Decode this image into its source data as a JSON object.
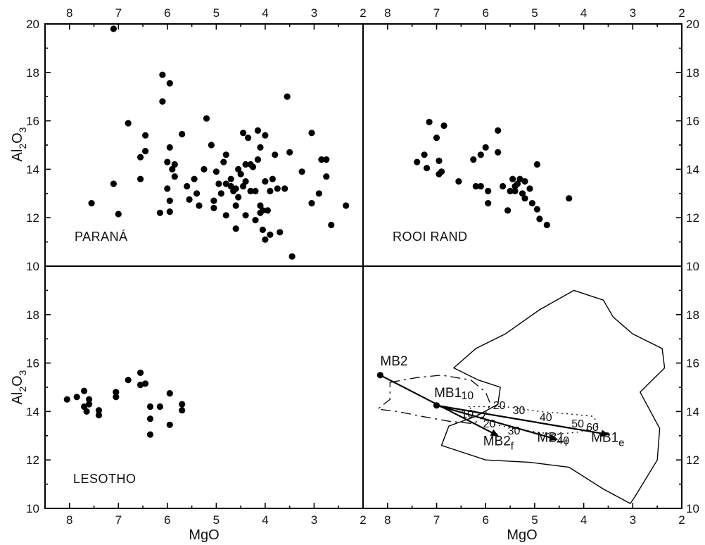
{
  "figure": {
    "xlabel": "MgO",
    "ylabel_main": "Al",
    "ylabel_sub1": "2",
    "ylabel_mid": "O",
    "ylabel_sub2": "3"
  },
  "chart_data": [
    {
      "type": "scatter",
      "panel": "top-left",
      "label": "PARANÁ",
      "xlabel": "",
      "ylabel": "Al2O3",
      "xlim": [
        8.5,
        2
      ],
      "ylim": [
        10,
        20
      ],
      "points": [
        [
          7.1,
          19.8
        ],
        [
          6.1,
          17.9
        ],
        [
          5.95,
          17.55
        ],
        [
          6.1,
          16.8
        ],
        [
          6.8,
          15.9
        ],
        [
          5.2,
          16.1
        ],
        [
          3.55,
          17.0
        ],
        [
          7.55,
          12.6
        ],
        [
          7.1,
          13.4
        ],
        [
          7.0,
          12.15
        ],
        [
          6.55,
          14.5
        ],
        [
          6.45,
          15.4
        ],
        [
          6.45,
          14.75
        ],
        [
          6.55,
          13.6
        ],
        [
          6.15,
          12.2
        ],
        [
          6.0,
          14.3
        ],
        [
          5.95,
          14.9
        ],
        [
          5.9,
          14.0
        ],
        [
          5.85,
          14.2
        ],
        [
          5.85,
          13.7
        ],
        [
          6.0,
          13.2
        ],
        [
          5.95,
          12.7
        ],
        [
          5.95,
          12.25
        ],
        [
          5.7,
          15.45
        ],
        [
          5.6,
          13.3
        ],
        [
          5.55,
          12.75
        ],
        [
          5.45,
          13.6
        ],
        [
          5.4,
          13.0
        ],
        [
          5.35,
          12.5
        ],
        [
          5.25,
          14.0
        ],
        [
          5.1,
          15.0
        ],
        [
          5.05,
          12.7
        ],
        [
          5.0,
          13.9
        ],
        [
          5.05,
          12.4
        ],
        [
          4.95,
          13.4
        ],
        [
          4.9,
          13.0
        ],
        [
          4.85,
          14.3
        ],
        [
          4.8,
          14.6
        ],
        [
          4.8,
          12.1
        ],
        [
          4.7,
          13.3
        ],
        [
          4.7,
          13.6
        ],
        [
          4.65,
          13.1
        ],
        [
          4.6,
          13.2
        ],
        [
          4.6,
          12.5
        ],
        [
          4.6,
          11.55
        ],
        [
          4.55,
          14.0
        ],
        [
          4.55,
          12.85
        ],
        [
          4.5,
          13.8
        ],
        [
          4.45,
          15.5
        ],
        [
          4.45,
          13.3
        ],
        [
          4.4,
          14.2
        ],
        [
          4.4,
          13.5
        ],
        [
          4.4,
          12.1
        ],
        [
          4.35,
          15.3
        ],
        [
          4.3,
          14.2
        ],
        [
          4.25,
          14.1
        ],
        [
          4.2,
          13.1
        ],
        [
          4.2,
          11.9
        ],
        [
          4.15,
          15.6
        ],
        [
          4.1,
          14.9
        ],
        [
          4.1,
          12.5
        ],
        [
          4.05,
          12.3
        ],
        [
          4.05,
          11.5
        ],
        [
          4.0,
          15.4
        ],
        [
          4.0,
          13.5
        ],
        [
          4.0,
          11.1
        ],
        [
          3.95,
          12.3
        ],
        [
          3.9,
          13.1
        ],
        [
          3.9,
          11.3
        ],
        [
          3.85,
          13.6
        ],
        [
          3.8,
          14.6
        ],
        [
          3.75,
          13.2
        ],
        [
          3.7,
          11.4
        ],
        [
          3.6,
          13.2
        ],
        [
          3.5,
          14.7
        ],
        [
          3.45,
          10.4
        ],
        [
          3.25,
          13.9
        ],
        [
          3.05,
          15.5
        ],
        [
          3.05,
          12.6
        ],
        [
          2.9,
          13.0
        ],
        [
          2.85,
          14.4
        ],
        [
          2.75,
          14.4
        ],
        [
          2.75,
          13.7
        ],
        [
          2.65,
          11.7
        ],
        [
          2.35,
          12.5
        ],
        [
          4.15,
          14.4
        ],
        [
          4.8,
          13.4
        ],
        [
          4.3,
          13.1
        ],
        [
          4.1,
          12.2
        ]
      ]
    },
    {
      "type": "scatter",
      "panel": "top-right",
      "label": "ROOI RAND",
      "xlabel": "",
      "ylabel": "",
      "xlim": [
        8.5,
        2
      ],
      "ylim": [
        10,
        20
      ],
      "points": [
        [
          7.15,
          15.95
        ],
        [
          6.85,
          15.8
        ],
        [
          7.0,
          15.3
        ],
        [
          6.95,
          14.35
        ],
        [
          7.4,
          14.3
        ],
        [
          7.25,
          14.6
        ],
        [
          7.2,
          14.05
        ],
        [
          6.95,
          13.8
        ],
        [
          6.9,
          13.9
        ],
        [
          6.55,
          13.5
        ],
        [
          6.2,
          13.3
        ],
        [
          6.1,
          13.3
        ],
        [
          5.95,
          13.1
        ],
        [
          5.95,
          12.6
        ],
        [
          6.25,
          14.4
        ],
        [
          6.1,
          14.6
        ],
        [
          6.0,
          14.9
        ],
        [
          5.75,
          14.7
        ],
        [
          5.75,
          15.6
        ],
        [
          5.55,
          12.3
        ],
        [
          5.65,
          13.3
        ],
        [
          5.5,
          13.1
        ],
        [
          5.45,
          13.6
        ],
        [
          5.4,
          13.1
        ],
        [
          5.35,
          13.4
        ],
        [
          5.3,
          13.6
        ],
        [
          5.25,
          13.0
        ],
        [
          5.2,
          12.8
        ],
        [
          5.1,
          13.2
        ],
        [
          5.05,
          12.6
        ],
        [
          4.95,
          14.2
        ],
        [
          4.95,
          12.35
        ],
        [
          4.9,
          11.95
        ],
        [
          4.75,
          11.7
        ],
        [
          4.3,
          12.8
        ],
        [
          5.4,
          13.3
        ],
        [
          5.2,
          13.5
        ]
      ]
    },
    {
      "type": "scatter",
      "panel": "bottom-left",
      "label": "LESOTHO",
      "xlabel": "MgO",
      "ylabel": "Al2O3",
      "xlim": [
        8.5,
        2
      ],
      "ylim": [
        10,
        20
      ],
      "points": [
        [
          8.05,
          14.5
        ],
        [
          7.85,
          14.6
        ],
        [
          7.7,
          14.85
        ],
        [
          7.7,
          14.2
        ],
        [
          7.65,
          14.0
        ],
        [
          7.6,
          14.5
        ],
        [
          7.6,
          14.3
        ],
        [
          7.4,
          14.05
        ],
        [
          7.4,
          13.85
        ],
        [
          7.05,
          14.8
        ],
        [
          7.05,
          14.6
        ],
        [
          6.8,
          15.3
        ],
        [
          6.55,
          15.6
        ],
        [
          6.55,
          15.1
        ],
        [
          6.45,
          15.15
        ],
        [
          6.35,
          14.2
        ],
        [
          6.35,
          13.7
        ],
        [
          6.35,
          13.05
        ],
        [
          6.15,
          14.2
        ],
        [
          5.95,
          14.75
        ],
        [
          5.95,
          13.45
        ],
        [
          5.7,
          14.3
        ],
        [
          5.7,
          14.05
        ]
      ]
    },
    {
      "type": "scatter",
      "panel": "bottom-right",
      "label": "",
      "xlabel": "MgO",
      "ylabel": "",
      "xlim": [
        8.5,
        2
      ],
      "ylim": [
        10,
        20
      ],
      "points": [
        [
          8.15,
          15.5
        ],
        [
          7.0,
          14.25
        ]
      ],
      "vectors": [
        {
          "name": "MB2",
          "from": [
            8.15,
            15.5
          ],
          "to": [
            5.75,
            13.0
          ]
        },
        {
          "name": "MB1",
          "from": [
            7.0,
            14.25
          ],
          "to": [
            4.55,
            12.85
          ]
        },
        {
          "name": "MB1",
          "from": [
            7.0,
            14.25
          ],
          "to": [
            3.5,
            13.05
          ]
        }
      ],
      "annotations": [
        {
          "text": "MB2",
          "x": 8.15,
          "y": 15.9
        },
        {
          "text": "MB1",
          "x": 7.05,
          "y": 14.6
        },
        {
          "text": "10",
          "x": 6.5,
          "y": 14.5
        },
        {
          "text": "20",
          "x": 5.85,
          "y": 14.1
        },
        {
          "text": "30",
          "x": 5.45,
          "y": 13.9
        },
        {
          "text": "40",
          "x": 4.9,
          "y": 13.6
        },
        {
          "text": "50",
          "x": 4.25,
          "y": 13.35
        },
        {
          "text": "60",
          "x": 3.95,
          "y": 13.2
        },
        {
          "text": "10",
          "x": 6.5,
          "y": 13.75
        },
        {
          "text": "20",
          "x": 6.05,
          "y": 13.35
        },
        {
          "text": "30",
          "x": 5.55,
          "y": 13.05
        },
        {
          "text": "40",
          "x": 4.55,
          "y": 12.65
        },
        {
          "text": "MB2",
          "x": 6.05,
          "y": 12.6,
          "sub": "f"
        },
        {
          "text": "MB1",
          "x": 4.95,
          "y": 12.75,
          "sub": "f"
        },
        {
          "text": "MB1",
          "x": 3.85,
          "y": 12.75,
          "sub": "e"
        }
      ],
      "fields": {
        "solid_outline": [
          [
            6.65,
            15.8
          ],
          [
            6.2,
            16.6
          ],
          [
            5.6,
            17.2
          ],
          [
            4.9,
            18.2
          ],
          [
            4.2,
            19.0
          ],
          [
            3.6,
            18.6
          ],
          [
            3.4,
            17.9
          ],
          [
            3.0,
            17.2
          ],
          [
            2.4,
            16.6
          ],
          [
            2.35,
            15.8
          ],
          [
            2.85,
            14.8
          ],
          [
            2.45,
            13.3
          ],
          [
            2.5,
            12.0
          ],
          [
            2.95,
            10.5
          ],
          [
            3.05,
            10.2
          ],
          [
            3.6,
            10.8
          ],
          [
            4.3,
            11.7
          ],
          [
            5.1,
            11.9
          ],
          [
            6.0,
            12.0
          ],
          [
            6.9,
            12.6
          ],
          [
            6.75,
            13.4
          ],
          [
            6.2,
            13.8
          ],
          [
            5.75,
            14.3
          ],
          [
            5.7,
            15.0
          ],
          [
            6.15,
            15.3
          ],
          [
            6.65,
            15.8
          ]
        ],
        "dashed_outline": [
          [
            7.95,
            15.2
          ],
          [
            7.4,
            15.4
          ],
          [
            6.9,
            15.5
          ],
          [
            6.3,
            15.3
          ],
          [
            6.0,
            14.8
          ],
          [
            5.9,
            14.3
          ],
          [
            6.05,
            13.75
          ],
          [
            6.25,
            13.5
          ],
          [
            6.75,
            13.6
          ],
          [
            7.3,
            13.8
          ],
          [
            7.8,
            14.0
          ],
          [
            8.2,
            14.1
          ],
          [
            7.95,
            14.5
          ],
          [
            7.95,
            15.2
          ]
        ],
        "dashdot_outline": [
          [
            6.35,
            14.2
          ],
          [
            5.6,
            14.2
          ],
          [
            4.9,
            14.0
          ],
          [
            4.3,
            13.9
          ],
          [
            3.8,
            13.8
          ],
          [
            3.7,
            13.4
          ],
          [
            4.1,
            13.15
          ],
          [
            4.6,
            13.05
          ],
          [
            5.3,
            13.25
          ],
          [
            5.9,
            13.5
          ],
          [
            6.35,
            14.2
          ]
        ]
      }
    }
  ]
}
